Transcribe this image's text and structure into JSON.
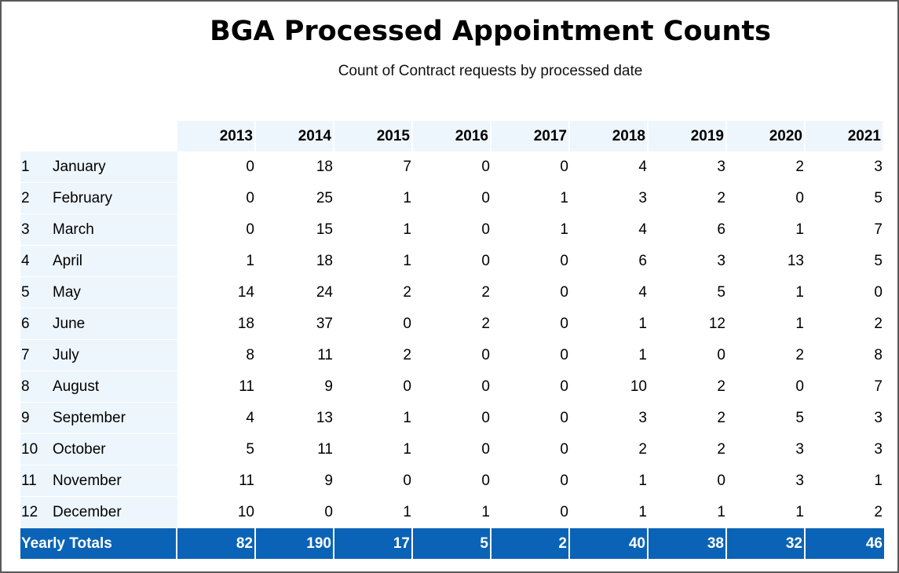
{
  "title": "BGA Processed Appointment Counts",
  "subtitle": "Count of Contract requests by processed date",
  "years": [
    "2013",
    "2014",
    "2015",
    "2016",
    "2017",
    "2018",
    "2019",
    "2020",
    "2021"
  ],
  "rows": [
    {
      "num": "1",
      "month": "January",
      "values": [
        "0",
        "18",
        "7",
        "0",
        "0",
        "4",
        "3",
        "2",
        "3"
      ]
    },
    {
      "num": "2",
      "month": "February",
      "values": [
        "0",
        "25",
        "1",
        "0",
        "1",
        "3",
        "2",
        "0",
        "5"
      ]
    },
    {
      "num": "3",
      "month": "March",
      "values": [
        "0",
        "15",
        "1",
        "0",
        "1",
        "4",
        "6",
        "1",
        "7"
      ]
    },
    {
      "num": "4",
      "month": "April",
      "values": [
        "1",
        "18",
        "1",
        "0",
        "0",
        "6",
        "3",
        "13",
        "5"
      ]
    },
    {
      "num": "5",
      "month": "May",
      "values": [
        "14",
        "24",
        "2",
        "2",
        "0",
        "4",
        "5",
        "1",
        "0"
      ]
    },
    {
      "num": "6",
      "month": "June",
      "values": [
        "18",
        "37",
        "0",
        "2",
        "0",
        "1",
        "12",
        "1",
        "2"
      ]
    },
    {
      "num": "7",
      "month": "July",
      "values": [
        "8",
        "11",
        "2",
        "0",
        "0",
        "1",
        "0",
        "2",
        "8"
      ]
    },
    {
      "num": "8",
      "month": "August",
      "values": [
        "11",
        "9",
        "0",
        "0",
        "0",
        "10",
        "2",
        "0",
        "7"
      ]
    },
    {
      "num": "9",
      "month": "September",
      "values": [
        "4",
        "13",
        "1",
        "0",
        "0",
        "3",
        "2",
        "5",
        "3"
      ]
    },
    {
      "num": "10",
      "month": "October",
      "values": [
        "5",
        "11",
        "1",
        "0",
        "0",
        "2",
        "2",
        "3",
        "3"
      ]
    },
    {
      "num": "11",
      "month": "November",
      "values": [
        "11",
        "9",
        "0",
        "0",
        "0",
        "1",
        "0",
        "3",
        "1"
      ]
    },
    {
      "num": "12",
      "month": "December",
      "values": [
        "10",
        "0",
        "1",
        "1",
        "0",
        "1",
        "1",
        "1",
        "2"
      ]
    }
  ],
  "totals": {
    "label": "Yearly Totals",
    "values": [
      "82",
      "190",
      "17",
      "5",
      "2",
      "40",
      "38",
      "32",
      "46"
    ]
  },
  "colors": {
    "header_bg": "#eef6fd",
    "totals_bg": "#0a63b6",
    "totals_text": "#ffffff",
    "frame_border": "#5a5a5a"
  }
}
